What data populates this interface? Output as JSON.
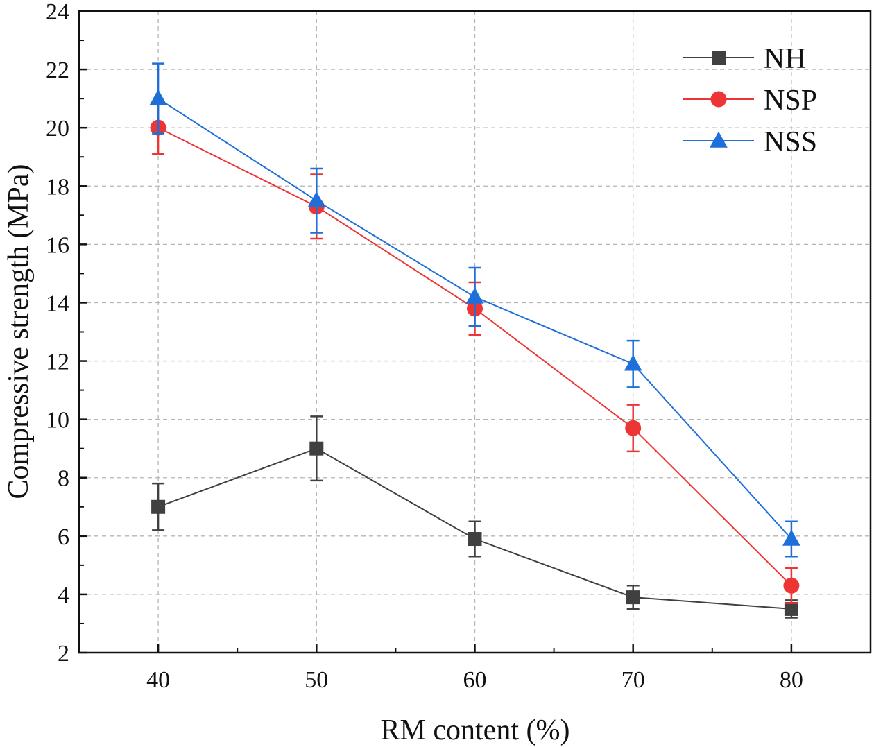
{
  "chart_data": {
    "type": "line",
    "title": "",
    "xlabel": "RM content (%)",
    "ylabel": "Compressive strength (MPa)",
    "xlim": [
      35,
      85
    ],
    "ylim": [
      2,
      24
    ],
    "xticks": [
      40,
      50,
      60,
      70,
      80
    ],
    "xminor_ticks": [
      45,
      55,
      65,
      75
    ],
    "yticks": [
      2,
      4,
      6,
      8,
      10,
      12,
      14,
      16,
      18,
      20,
      22,
      24
    ],
    "grid": true,
    "legend_position": "top-right",
    "x": [
      40,
      50,
      60,
      70,
      80
    ],
    "series": [
      {
        "name": "NH",
        "color": "#404040",
        "marker": "square",
        "values": [
          7.0,
          9.0,
          5.9,
          3.9,
          3.5
        ],
        "errors": [
          0.8,
          1.1,
          0.6,
          0.4,
          0.3
        ]
      },
      {
        "name": "NSP",
        "color": "#ee3535",
        "marker": "circle",
        "values": [
          20.0,
          17.3,
          13.8,
          9.7,
          4.3
        ],
        "errors": [
          0.9,
          1.1,
          0.9,
          0.8,
          0.6
        ]
      },
      {
        "name": "NSS",
        "color": "#1f6fdb",
        "marker": "triangle",
        "values": [
          21.0,
          17.5,
          14.2,
          11.9,
          5.9
        ],
        "errors": [
          1.2,
          1.1,
          1.0,
          0.8,
          0.6
        ]
      }
    ]
  }
}
